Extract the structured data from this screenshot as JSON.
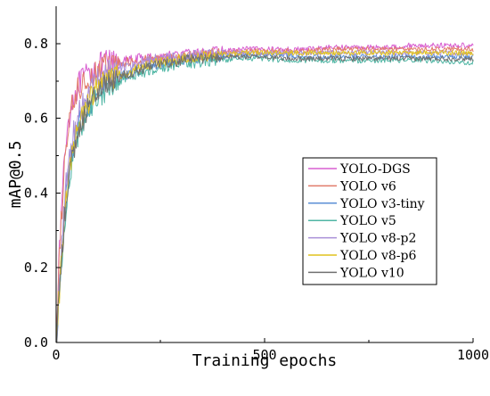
{
  "chart_data": {
    "type": "line",
    "xlabel": "Training epochs",
    "ylabel": "mAP@0.5",
    "xlim": [
      0,
      1000
    ],
    "ylim": [
      0.0,
      0.9
    ],
    "x_ticks": [
      0,
      500,
      1000
    ],
    "y_ticks": [
      0.0,
      0.2,
      0.4,
      0.6,
      0.8
    ],
    "x_tick_labels": [
      "0",
      "500",
      "1000"
    ],
    "y_tick_labels": [
      "0.0",
      "0.2",
      "0.4",
      "0.6",
      "0.8"
    ],
    "grid": false,
    "legend_position": "right",
    "series": [
      {
        "name": "YOLO-DGS",
        "color": "#d85fd0",
        "x": [
          0,
          10,
          20,
          30,
          40,
          50,
          60,
          80,
          100,
          120,
          150,
          200,
          250,
          300,
          350,
          400,
          450,
          500,
          550,
          600,
          650,
          700,
          750,
          800,
          850,
          900,
          950,
          1000
        ],
        "values": [
          0.0,
          0.3,
          0.5,
          0.6,
          0.65,
          0.68,
          0.7,
          0.72,
          0.74,
          0.75,
          0.75,
          0.76,
          0.765,
          0.77,
          0.775,
          0.78,
          0.785,
          0.785,
          0.785,
          0.785,
          0.79,
          0.79,
          0.79,
          0.79,
          0.795,
          0.795,
          0.795,
          0.795
        ]
      },
      {
        "name": "YOLO v6",
        "color": "#e17b6a",
        "x": [
          0,
          10,
          20,
          30,
          40,
          50,
          60,
          80,
          100,
          120,
          150,
          200,
          250,
          300,
          350,
          400,
          450,
          500,
          550,
          600,
          650,
          700,
          750,
          800,
          850,
          900,
          950,
          1000
        ],
        "values": [
          0.0,
          0.28,
          0.48,
          0.58,
          0.64,
          0.67,
          0.69,
          0.71,
          0.73,
          0.74,
          0.745,
          0.755,
          0.76,
          0.765,
          0.77,
          0.775,
          0.78,
          0.78,
          0.78,
          0.78,
          0.785,
          0.785,
          0.785,
          0.785,
          0.785,
          0.785,
          0.785,
          0.785
        ]
      },
      {
        "name": "YOLO v3-tiny",
        "color": "#5b8fd6",
        "x": [
          0,
          10,
          20,
          30,
          40,
          50,
          60,
          80,
          100,
          120,
          150,
          200,
          250,
          300,
          350,
          400,
          450,
          500,
          550,
          600,
          650,
          700,
          750,
          800,
          850,
          900,
          950,
          1000
        ],
        "values": [
          0.0,
          0.18,
          0.35,
          0.45,
          0.52,
          0.57,
          0.6,
          0.64,
          0.67,
          0.69,
          0.71,
          0.73,
          0.745,
          0.755,
          0.76,
          0.765,
          0.77,
          0.77,
          0.77,
          0.765,
          0.765,
          0.765,
          0.765,
          0.765,
          0.765,
          0.765,
          0.765,
          0.765
        ]
      },
      {
        "name": "YOLO v5",
        "color": "#4fb6a4",
        "x": [
          0,
          10,
          20,
          30,
          40,
          50,
          60,
          80,
          100,
          120,
          150,
          200,
          250,
          300,
          350,
          400,
          450,
          500,
          550,
          600,
          650,
          700,
          750,
          800,
          850,
          900,
          950,
          1000
        ],
        "values": [
          0.0,
          0.15,
          0.32,
          0.42,
          0.5,
          0.55,
          0.58,
          0.63,
          0.66,
          0.68,
          0.7,
          0.72,
          0.735,
          0.745,
          0.75,
          0.755,
          0.76,
          0.76,
          0.755,
          0.755,
          0.755,
          0.755,
          0.755,
          0.755,
          0.755,
          0.755,
          0.75,
          0.75
        ]
      },
      {
        "name": "YOLO v8-p2",
        "color": "#a98fd8",
        "x": [
          0,
          10,
          20,
          30,
          40,
          50,
          60,
          80,
          100,
          120,
          150,
          200,
          250,
          300,
          350,
          400,
          450,
          500,
          550,
          600,
          650,
          700,
          750,
          800,
          850,
          900,
          950,
          1000
        ],
        "values": [
          0.0,
          0.2,
          0.38,
          0.48,
          0.55,
          0.6,
          0.63,
          0.67,
          0.7,
          0.72,
          0.735,
          0.75,
          0.76,
          0.765,
          0.77,
          0.775,
          0.775,
          0.775,
          0.775,
          0.775,
          0.775,
          0.775,
          0.775,
          0.775,
          0.775,
          0.775,
          0.775,
          0.775
        ]
      },
      {
        "name": "YOLO v8-p6",
        "color": "#e1c21e",
        "x": [
          0,
          10,
          20,
          30,
          40,
          50,
          60,
          80,
          100,
          120,
          150,
          200,
          250,
          300,
          350,
          400,
          450,
          500,
          550,
          600,
          650,
          700,
          750,
          800,
          850,
          900,
          950,
          1000
        ],
        "values": [
          0.0,
          0.17,
          0.34,
          0.44,
          0.51,
          0.56,
          0.6,
          0.65,
          0.68,
          0.7,
          0.715,
          0.735,
          0.75,
          0.76,
          0.765,
          0.77,
          0.775,
          0.775,
          0.775,
          0.775,
          0.775,
          0.775,
          0.775,
          0.775,
          0.775,
          0.775,
          0.775,
          0.775
        ]
      },
      {
        "name": "YOLO v10",
        "color": "#707070",
        "x": [
          0,
          10,
          20,
          30,
          40,
          50,
          60,
          80,
          100,
          120,
          150,
          200,
          250,
          300,
          350,
          400,
          450,
          500,
          550,
          600,
          650,
          700,
          750,
          800,
          850,
          900,
          950,
          1000
        ],
        "values": [
          0.0,
          0.16,
          0.33,
          0.43,
          0.5,
          0.56,
          0.59,
          0.64,
          0.67,
          0.69,
          0.71,
          0.73,
          0.745,
          0.755,
          0.76,
          0.765,
          0.765,
          0.765,
          0.76,
          0.76,
          0.76,
          0.76,
          0.76,
          0.76,
          0.76,
          0.76,
          0.76,
          0.76
        ]
      }
    ]
  }
}
